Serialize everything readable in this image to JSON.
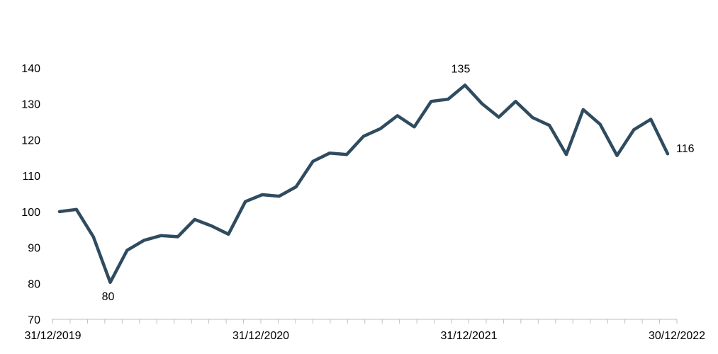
{
  "chart_data": {
    "type": "line",
    "title": "",
    "xlabel": "",
    "ylabel": "",
    "ylim": [
      70,
      140
    ],
    "yticks": [
      70,
      80,
      90,
      100,
      110,
      120,
      130,
      140
    ],
    "x_tick_labels": [
      "31/12/2019",
      "31/12/2020",
      "31/12/2021",
      "30/12/2022"
    ],
    "grid": false,
    "legend": "none",
    "series": [
      {
        "color": "#2F4B5F",
        "values": [
          100,
          100.6,
          93,
          80.3,
          89.2,
          92,
          93.3,
          93,
          97.8,
          96,
          93.7,
          102.8,
          104.7,
          104.3,
          106.9,
          114,
          116.3,
          115.9,
          121,
          123.1,
          126.7,
          123.6,
          130.7,
          131.3,
          135.2,
          130.1,
          126.3,
          130.7,
          126.2,
          124,
          115.9,
          128.4,
          124.3,
          115.6,
          122.8,
          125.7,
          116.1
        ]
      }
    ],
    "annotations": [
      {
        "label": "80",
        "index": 3
      },
      {
        "label": "135",
        "index": 24
      },
      {
        "label": "116",
        "index": 36
      }
    ]
  }
}
